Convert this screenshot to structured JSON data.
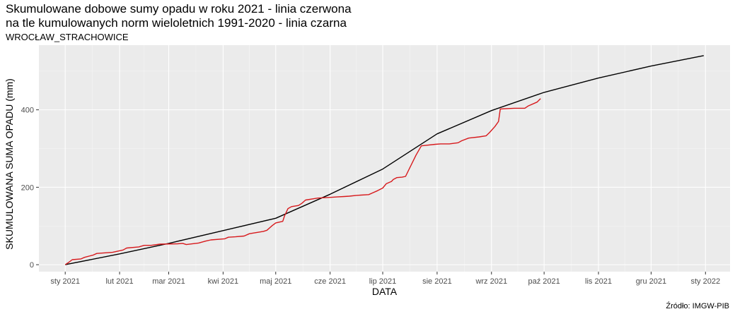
{
  "title_line1": "Skumulowane dobowe sumy opadu w roku 2021 - linia czerwona",
  "title_line2": "na tle kumulowanych norm wieloletnich 1991-2020 - linia czarna",
  "subtitle": "WROCŁAW_STRACHOWICE",
  "source": "Źródło: IMGW-PIB",
  "chart_data": {
    "type": "line",
    "xlabel": "DATA",
    "ylabel": "SKUMULOWANA SUMA OPADU (mm)",
    "xlim": [
      "2020-12-17",
      "2022-01-15"
    ],
    "ylim": [
      -18,
      567
    ],
    "x_ticks": [
      {
        "date": "2021-01-01",
        "label": "sty 2021"
      },
      {
        "date": "2021-02-01",
        "label": "lut 2021"
      },
      {
        "date": "2021-03-01",
        "label": "mar 2021"
      },
      {
        "date": "2021-04-01",
        "label": "kwi 2021"
      },
      {
        "date": "2021-05-01",
        "label": "maj 2021"
      },
      {
        "date": "2021-06-01",
        "label": "cze 2021"
      },
      {
        "date": "2021-07-01",
        "label": "lip 2021"
      },
      {
        "date": "2021-08-01",
        "label": "sie 2021"
      },
      {
        "date": "2021-09-01",
        "label": "wrz 2021"
      },
      {
        "date": "2021-10-01",
        "label": "paź 2021"
      },
      {
        "date": "2021-11-01",
        "label": "lis 2021"
      },
      {
        "date": "2021-12-01",
        "label": "gru 2021"
      },
      {
        "date": "2022-01-01",
        "label": "sty 2022"
      }
    ],
    "y_ticks": [
      0,
      200,
      400
    ],
    "grid": true,
    "background": "#ebebeb",
    "series": [
      {
        "color": "#000000",
        "x": [
          "2021-01-01",
          "2021-02-01",
          "2021-03-01",
          "2021-04-01",
          "2021-05-01",
          "2021-06-01",
          "2021-07-01",
          "2021-08-01",
          "2021-09-01",
          "2021-10-01",
          "2021-11-01",
          "2021-12-01",
          "2021-12-31"
        ],
        "y": [
          0,
          28,
          55,
          88,
          120,
          182,
          247,
          338,
          398,
          445,
          482,
          513,
          540
        ]
      },
      {
        "color": "#d7191c",
        "x": [
          "2021-01-01",
          "2021-01-03",
          "2021-01-05",
          "2021-01-10",
          "2021-01-12",
          "2021-01-17",
          "2021-01-19",
          "2021-01-28",
          "2021-02-03",
          "2021-02-05",
          "2021-02-12",
          "2021-02-15",
          "2021-02-19",
          "2021-02-24",
          "2021-03-06",
          "2021-03-09",
          "2021-03-11",
          "2021-03-18",
          "2021-03-22",
          "2021-03-25",
          "2021-04-02",
          "2021-04-04",
          "2021-04-08",
          "2021-04-13",
          "2021-04-16",
          "2021-04-24",
          "2021-04-26",
          "2021-04-29",
          "2021-05-01",
          "2021-05-03",
          "2021-05-05",
          "2021-05-06",
          "2021-05-08",
          "2021-05-10",
          "2021-05-14",
          "2021-05-16",
          "2021-05-18",
          "2021-05-25",
          "2021-06-02",
          "2021-06-05",
          "2021-06-09",
          "2021-06-12",
          "2021-06-16",
          "2021-06-23",
          "2021-06-25",
          "2021-06-28",
          "2021-07-01",
          "2021-07-03",
          "2021-07-06",
          "2021-07-07",
          "2021-07-09",
          "2021-07-12",
          "2021-07-14",
          "2021-07-20",
          "2021-07-23",
          "2021-07-31",
          "2021-08-03",
          "2021-08-06",
          "2021-08-08",
          "2021-08-13",
          "2021-08-15",
          "2021-08-19",
          "2021-08-25",
          "2021-08-29",
          "2021-08-31",
          "2021-09-03",
          "2021-09-05",
          "2021-09-06",
          "2021-09-14",
          "2021-09-20",
          "2021-09-22",
          "2021-09-27",
          "2021-09-29"
        ],
        "y": [
          0,
          6,
          13,
          15,
          19,
          25,
          29,
          32,
          38,
          43,
          46,
          50,
          50,
          53,
          54,
          55,
          52,
          56,
          61,
          64,
          67,
          71,
          72,
          74,
          80,
          86,
          89,
          101,
          108,
          110,
          112,
          126,
          145,
          150,
          153,
          159,
          167,
          172,
          174,
          175,
          176,
          177,
          179,
          181,
          185,
          191,
          198,
          209,
          215,
          220,
          225,
          226,
          228,
          283,
          307,
          311,
          312,
          312,
          312,
          315,
          320,
          327,
          330,
          333,
          342,
          357,
          370,
          402,
          404,
          404,
          410,
          420,
          429
        ]
      }
    ]
  }
}
